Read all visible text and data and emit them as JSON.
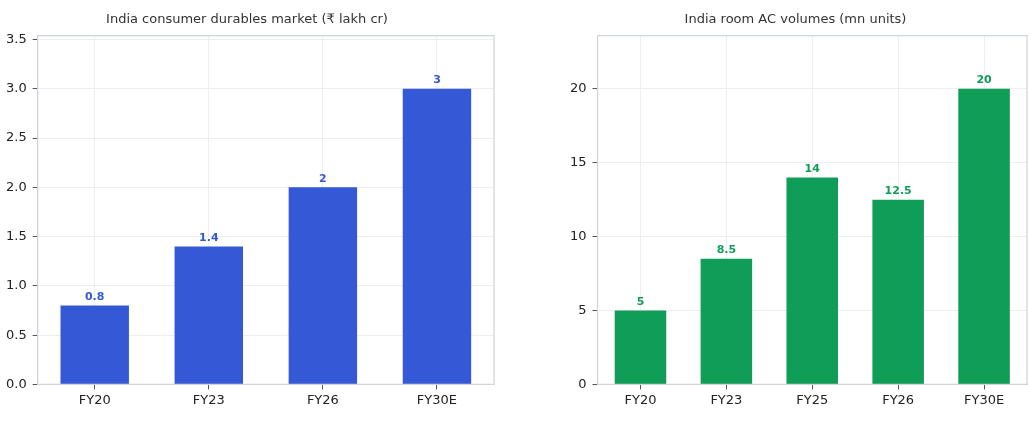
{
  "chart_data": [
    {
      "type": "bar",
      "title": "India consumer durables market (₹ lakh cr)",
      "categories": [
        "FY20",
        "FY23",
        "FY26",
        "FY30E"
      ],
      "values": [
        0.8,
        1.4,
        2,
        3
      ],
      "color": "#3558d6",
      "ylim": [
        0,
        3.54
      ],
      "yticks": [
        {
          "value": 0,
          "label": "0.0"
        },
        {
          "value": 0.5,
          "label": "0.5"
        },
        {
          "value": 1,
          "label": "1.0"
        },
        {
          "value": 1.5,
          "label": "1.5"
        },
        {
          "value": 2,
          "label": "2.0"
        },
        {
          "value": 2.5,
          "label": "2.5"
        },
        {
          "value": 3,
          "label": "3.0"
        },
        {
          "value": 3.5,
          "label": "3.5"
        }
      ],
      "grid": true,
      "data_labels": true
    },
    {
      "type": "bar",
      "title": "India room AC volumes (mn units)",
      "categories": [
        "FY20",
        "FY23",
        "FY25",
        "FY26",
        "FY30E"
      ],
      "values": [
        5,
        8.5,
        14,
        12.5,
        20
      ],
      "color": "#109d58",
      "ylim": [
        0,
        23.6
      ],
      "yticks": [
        0,
        5,
        10,
        15,
        20
      ],
      "grid": true,
      "data_labels": true
    }
  ]
}
